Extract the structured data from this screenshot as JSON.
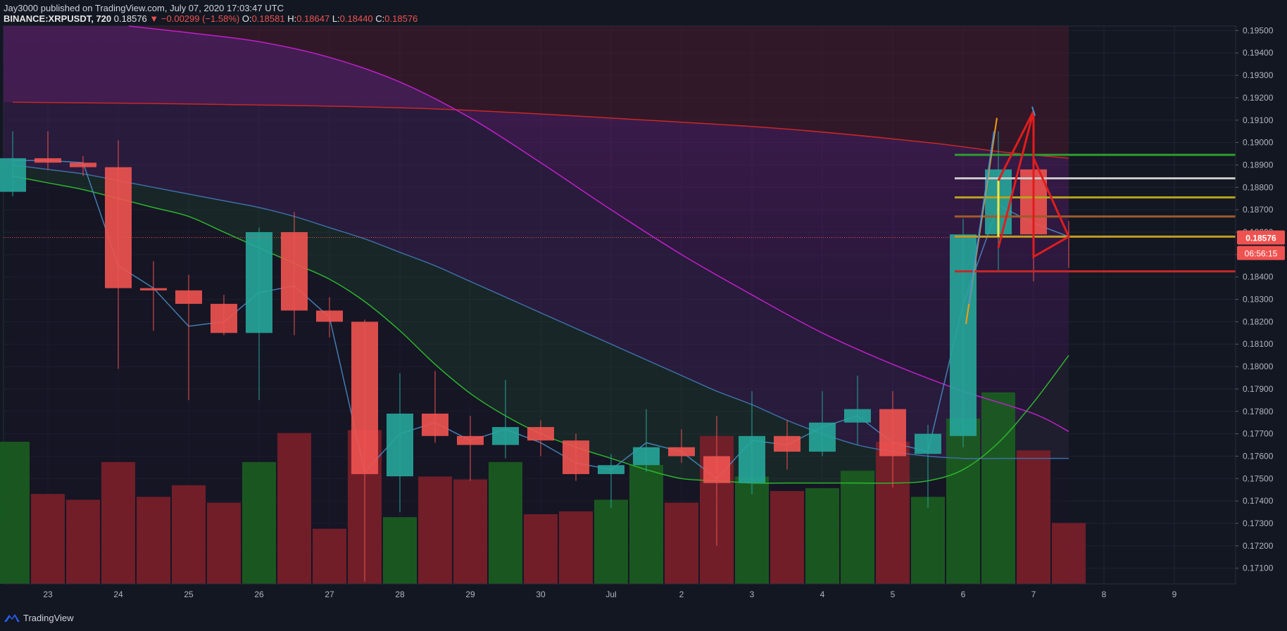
{
  "header": {
    "published": "Jay3000 published on TradingView.com, July 07, 2020 17:03:47 UTC",
    "symbol": "BINANCE:XRPUSDT, 720",
    "last": "0.18576",
    "change_arrow": "▼",
    "change": "−0.00299 (−1.58%)",
    "o_label": "O:",
    "o": "0.18581",
    "h_label": "H:",
    "h": "0.18647",
    "l_label": "L:",
    "l": "0.18440",
    "c_label": "C:",
    "c": "0.18576"
  },
  "footer": {
    "brand": "TradingView"
  },
  "colors": {
    "bg": "#131722",
    "grid": "#1f2433",
    "axis_text": "#b2b5be",
    "up": "#26a69a",
    "down": "#ef5350",
    "vol_up": "#1b5e20",
    "vol_down": "#7b1f2a",
    "ma_fast": "#2db52d",
    "ma_mid": "#3d6fa3",
    "ma_slow": "#c01fc9",
    "ma_200": "#c62828",
    "price_tag": "#ef5350"
  },
  "chart_data": {
    "type": "candlestick",
    "ylim": [
      0.1703,
      0.1952
    ],
    "y_ticks": [
      "0.19500",
      "0.19400",
      "0.19300",
      "0.19200",
      "0.19100",
      "0.19000",
      "0.18900",
      "0.18800",
      "0.18700",
      "0.18600",
      "0.18500",
      "0.18400",
      "0.18300",
      "0.18200",
      "0.18100",
      "0.18000",
      "0.17900",
      "0.17800",
      "0.17700",
      "0.17600",
      "0.17500",
      "0.17400",
      "0.17300",
      "0.17200",
      "0.17100"
    ],
    "x_labels": [
      {
        "label": "23",
        "bar": 1
      },
      {
        "label": "24",
        "bar": 3
      },
      {
        "label": "25",
        "bar": 5
      },
      {
        "label": "26",
        "bar": 7
      },
      {
        "label": "27",
        "bar": 9
      },
      {
        "label": "28",
        "bar": 11
      },
      {
        "label": "29",
        "bar": 13
      },
      {
        "label": "30",
        "bar": 15
      },
      {
        "label": "Jul",
        "bar": 17
      },
      {
        "label": "2",
        "bar": 19
      },
      {
        "label": "3",
        "bar": 21
      },
      {
        "label": "4",
        "bar": 23
      },
      {
        "label": "5",
        "bar": 25
      },
      {
        "label": "6",
        "bar": 27
      },
      {
        "label": "7",
        "bar": 29
      },
      {
        "label": "8",
        "bar": 31
      },
      {
        "label": "9",
        "bar": 33
      }
    ],
    "candles": [
      {
        "o": 0.1878,
        "h": 0.1905,
        "l": 0.1876,
        "c": 0.1893
      },
      {
        "o": 0.1893,
        "h": 0.1905,
        "l": 0.1888,
        "c": 0.1891
      },
      {
        "o": 0.1891,
        "h": 0.1894,
        "l": 0.1885,
        "c": 0.1889
      },
      {
        "o": 0.1889,
        "h": 0.1901,
        "l": 0.1799,
        "c": 0.1835
      },
      {
        "o": 0.1835,
        "h": 0.1847,
        "l": 0.1816,
        "c": 0.1834
      },
      {
        "o": 0.1834,
        "h": 0.1841,
        "l": 0.1785,
        "c": 0.1828
      },
      {
        "o": 0.1828,
        "h": 0.1832,
        "l": 0.1814,
        "c": 0.1815
      },
      {
        "o": 0.1815,
        "h": 0.1862,
        "l": 0.1785,
        "c": 0.186
      },
      {
        "o": 0.186,
        "h": 0.1869,
        "l": 0.1814,
        "c": 0.1825
      },
      {
        "o": 0.1825,
        "h": 0.1831,
        "l": 0.1813,
        "c": 0.182
      },
      {
        "o": 0.182,
        "h": 0.1821,
        "l": 0.1704,
        "c": 0.1752
      },
      {
        "o": 0.1751,
        "h": 0.1797,
        "l": 0.1735,
        "c": 0.1779
      },
      {
        "o": 0.1779,
        "h": 0.1798,
        "l": 0.1766,
        "c": 0.1769
      },
      {
        "o": 0.1769,
        "h": 0.1778,
        "l": 0.1749,
        "c": 0.1765
      },
      {
        "o": 0.1765,
        "h": 0.1794,
        "l": 0.1759,
        "c": 0.1773
      },
      {
        "o": 0.1773,
        "h": 0.1776,
        "l": 0.176,
        "c": 0.1767
      },
      {
        "o": 0.1767,
        "h": 0.177,
        "l": 0.1749,
        "c": 0.1752
      },
      {
        "o": 0.1752,
        "h": 0.1761,
        "l": 0.1737,
        "c": 0.1756
      },
      {
        "o": 0.1756,
        "h": 0.1781,
        "l": 0.1753,
        "c": 0.1764
      },
      {
        "o": 0.1764,
        "h": 0.1772,
        "l": 0.1757,
        "c": 0.176
      },
      {
        "o": 0.176,
        "h": 0.1778,
        "l": 0.172,
        "c": 0.1748
      },
      {
        "o": 0.1748,
        "h": 0.1789,
        "l": 0.1743,
        "c": 0.1769
      },
      {
        "o": 0.1769,
        "h": 0.1776,
        "l": 0.1754,
        "c": 0.1762
      },
      {
        "o": 0.1762,
        "h": 0.1789,
        "l": 0.176,
        "c": 0.1775
      },
      {
        "o": 0.1775,
        "h": 0.1796,
        "l": 0.1765,
        "c": 0.1781
      },
      {
        "o": 0.1781,
        "h": 0.1789,
        "l": 0.1746,
        "c": 0.176
      },
      {
        "o": 0.1761,
        "h": 0.1774,
        "l": 0.1737,
        "c": 0.177
      },
      {
        "o": 0.1769,
        "h": 0.1866,
        "l": 0.1764,
        "c": 0.1859
      },
      {
        "o": 0.1859,
        "h": 0.1905,
        "l": 0.1843,
        "c": 0.1888
      },
      {
        "o": 0.1888,
        "h": 0.1897,
        "l": 0.1838,
        "c": 0.1859
      },
      {
        "o": 0.1858,
        "h": 0.1865,
        "l": 0.1844,
        "c": 0.18576
      }
    ],
    "volume": [
      {
        "v": 0.49,
        "up": true
      },
      {
        "v": 0.31,
        "up": false
      },
      {
        "v": 0.29,
        "up": false
      },
      {
        "v": 0.42,
        "up": false
      },
      {
        "v": 0.3,
        "up": false
      },
      {
        "v": 0.34,
        "up": false
      },
      {
        "v": 0.28,
        "up": false
      },
      {
        "v": 0.42,
        "up": true
      },
      {
        "v": 0.52,
        "up": false
      },
      {
        "v": 0.19,
        "up": false
      },
      {
        "v": 0.53,
        "up": false
      },
      {
        "v": 0.23,
        "up": true
      },
      {
        "v": 0.37,
        "up": false
      },
      {
        "v": 0.36,
        "up": false
      },
      {
        "v": 0.42,
        "up": true
      },
      {
        "v": 0.24,
        "up": false
      },
      {
        "v": 0.25,
        "up": false
      },
      {
        "v": 0.29,
        "up": true
      },
      {
        "v": 0.41,
        "up": true
      },
      {
        "v": 0.28,
        "up": false
      },
      {
        "v": 0.51,
        "up": false
      },
      {
        "v": 0.37,
        "up": true
      },
      {
        "v": 0.32,
        "up": false
      },
      {
        "v": 0.33,
        "up": true
      },
      {
        "v": 0.39,
        "up": true
      },
      {
        "v": 0.49,
        "up": false
      },
      {
        "v": 0.3,
        "up": true
      },
      {
        "v": 0.57,
        "up": true
      },
      {
        "v": 0.66,
        "up": true
      },
      {
        "v": 0.46,
        "up": false
      },
      {
        "v": 0.21,
        "up": false
      }
    ],
    "ma_fast": [
      0.1885,
      0.1882,
      0.1879,
      0.1875,
      0.1871,
      0.1867,
      0.186,
      0.1853,
      0.1846,
      0.1839,
      0.1829,
      0.1816,
      0.1801,
      0.1788,
      0.1778,
      0.177,
      0.1764,
      0.1759,
      0.1754,
      0.175,
      0.1749,
      0.1748,
      0.1748,
      0.1748,
      0.1748,
      0.1748,
      0.1749,
      0.1754,
      0.1766,
      0.1784,
      0.1805
    ],
    "ma_mid": [
      0.189,
      0.1888,
      0.1886,
      0.1883,
      0.188,
      0.1877,
      0.1874,
      0.1871,
      0.1867,
      0.1862,
      0.1857,
      0.1851,
      0.1845,
      0.1838,
      0.1831,
      0.1824,
      0.1817,
      0.181,
      0.1803,
      0.1796,
      0.1789,
      0.1783,
      0.1776,
      0.177,
      0.1765,
      0.1762,
      0.176,
      0.1759,
      0.1759,
      0.1759,
      0.1759
    ],
    "ma_slow": [
      [
        3.3,
        0.1952
      ],
      [
        5,
        0.1949
      ],
      [
        7,
        0.1945
      ],
      [
        9,
        0.1938
      ],
      [
        11,
        0.1927
      ],
      [
        13,
        0.1911
      ],
      [
        15,
        0.1891
      ],
      [
        17,
        0.187
      ],
      [
        19,
        0.185
      ],
      [
        21,
        0.1832
      ],
      [
        23,
        0.1815
      ],
      [
        25,
        0.1801
      ],
      [
        27,
        0.1789
      ],
      [
        29,
        0.1779
      ],
      [
        30,
        0.1771
      ]
    ],
    "ma_200": [
      [
        0,
        0.1918
      ],
      [
        6,
        0.1917
      ],
      [
        12,
        0.1915
      ],
      [
        18,
        0.191
      ],
      [
        22,
        0.1906
      ],
      [
        26,
        0.19
      ],
      [
        28,
        0.1896
      ],
      [
        30,
        0.1893
      ]
    ],
    "ma_thin": [
      0.1892,
      0.1892,
      0.1891,
      0.1845,
      0.1835,
      0.1818,
      0.182,
      0.1833,
      0.1836,
      0.1822,
      0.1753,
      0.177,
      0.1775,
      0.1767,
      0.1772,
      0.1766,
      0.1757,
      0.1754,
      0.1766,
      0.1762,
      0.175,
      0.1767,
      0.1765,
      0.1773,
      0.1778,
      0.1766,
      0.1762,
      0.1828,
      0.1872,
      0.1864,
      0.1858
    ],
    "levels": [
      {
        "price": 0.18945,
        "color": "#2e9e2e"
      },
      {
        "price": 0.1884,
        "color": "#c8c8c8"
      },
      {
        "price": 0.18755,
        "color": "#b8a21e"
      },
      {
        "price": 0.1867,
        "color": "#a05a2c"
      },
      {
        "price": 0.1858,
        "color": "#b8a21e"
      },
      {
        "price": 0.18425,
        "color": "#c62828"
      }
    ],
    "last_price": "0.18576",
    "countdown": "06:56:15"
  }
}
